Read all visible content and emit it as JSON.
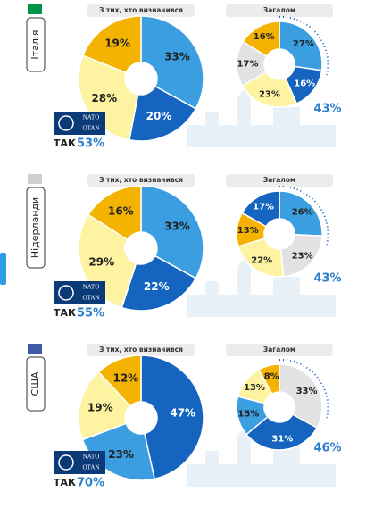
{
  "logo": {
    "nato": "NATO",
    "otan": "OTAN"
  },
  "panels": [
    {
      "country": "Італія",
      "yes_text": "ТАК",
      "yes_label": "53%"
    },
    {
      "country": "Нідерланди",
      "yes_text": "ТАК",
      "yes_label": "55%"
    },
    {
      "country": "США",
      "yes_text": "ТАК",
      "yes_label": "70%"
    }
  ],
  "chart_data": [
    {
      "type": "pie",
      "title": "З тих, хто визначився",
      "values": [
        33,
        20,
        28,
        19
      ],
      "value_labels": [
        "33%",
        "20%",
        "28%",
        "19%"
      ],
      "colors": [
        "#3a9ee0",
        "#1565c0",
        "#fdf3a0",
        "#f5b301"
      ]
    },
    {
      "type": "pie",
      "title": "Загалом",
      "values": [
        27,
        16,
        23,
        17,
        16
      ],
      "value_labels": [
        "27%",
        "16%",
        "23%",
        "17%",
        "16%"
      ],
      "colors": [
        "#3a9ee0",
        "#1565c0",
        "#fdf3a0",
        "#e2e2e2",
        "#f5b301"
      ],
      "annotation": "43%"
    },
    {
      "type": "pie",
      "title": "З тих, хто визначився",
      "values": [
        33,
        22,
        29,
        16
      ],
      "value_labels": [
        "33%",
        "22%",
        "29%",
        "16%"
      ],
      "colors": [
        "#3a9ee0",
        "#1565c0",
        "#fdf3a0",
        "#f5b301"
      ]
    },
    {
      "type": "pie",
      "title": "Загалом",
      "values": [
        26,
        23,
        22,
        13,
        17
      ],
      "value_labels": [
        "26%",
        "23%",
        "22%",
        "13%",
        "17%"
      ],
      "colors": [
        "#3a9ee0",
        "#e2e2e2",
        "#fdf3a0",
        "#f5b301",
        "#1565c0"
      ],
      "annotation": "43%"
    },
    {
      "type": "pie",
      "title": "З тих, хто визначився",
      "values": [
        47,
        23,
        19,
        12
      ],
      "value_labels": [
        "47%",
        "23%",
        "19%",
        "12%"
      ],
      "colors": [
        "#1565c0",
        "#3a9ee0",
        "#fdf3a0",
        "#f5b301"
      ]
    },
    {
      "type": "pie",
      "title": "Загалом",
      "values": [
        33,
        31,
        15,
        13,
        8
      ],
      "value_labels": [
        "33%",
        "31%",
        "15%",
        "13%",
        "8%"
      ],
      "colors": [
        "#e2e2e2",
        "#1565c0",
        "#3a9ee0",
        "#fdf3a0",
        "#f5b301"
      ],
      "annotation": "46%"
    }
  ]
}
